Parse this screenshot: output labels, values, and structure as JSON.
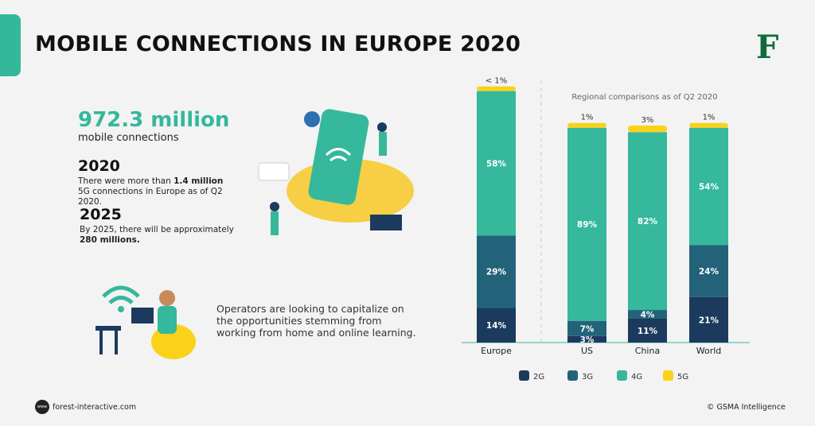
{
  "header": {
    "title": "MOBILE CONNECTIONS IN EUROPE 2020",
    "logo_letter": "F"
  },
  "stats": {
    "big_number": "972.3 million",
    "big_label": "mobile connections",
    "year1": "2020",
    "year1_text_a": "There were more than ",
    "year1_text_bold": "1.4 million",
    "year1_text_b": " 5G connections in Europe as of Q2 2020.",
    "year2": "2025",
    "year2_text_a": "By 2025, there will be approximately ",
    "year2_text_bold": "280 millions."
  },
  "operators_text": "Operators are looking to capitalize on the opportunities stemming from working from home and online learning.",
  "footer": {
    "website": "forest-interactive.com",
    "www": "www",
    "source": "© GSMA Intelligence"
  },
  "chart_data": {
    "type": "bar",
    "stacked": true,
    "title": "Regional comparisons as of Q2 2020",
    "categories": [
      "Europe",
      "US",
      "China",
      "World"
    ],
    "series": [
      {
        "name": "2G",
        "color": "#1b3a5e",
        "values": [
          14,
          3,
          11,
          21
        ],
        "labels": [
          "14%",
          "3%",
          "11%",
          "21%"
        ]
      },
      {
        "name": "3G",
        "color": "#22637a",
        "values": [
          29,
          7,
          4,
          24
        ],
        "labels": [
          "29%",
          "7%",
          "4%",
          "24%"
        ]
      },
      {
        "name": "4G",
        "color": "#35b89c",
        "values": [
          58,
          89,
          82,
          54
        ],
        "labels": [
          "58%",
          "89%",
          "82%",
          "54%"
        ]
      },
      {
        "name": "5G",
        "color": "#fad21a",
        "values": [
          0.5,
          1,
          3,
          1
        ],
        "labels": [
          "< 1%",
          "1%",
          "3%",
          "1%"
        ]
      }
    ],
    "grid": false,
    "legend": "bottom"
  }
}
